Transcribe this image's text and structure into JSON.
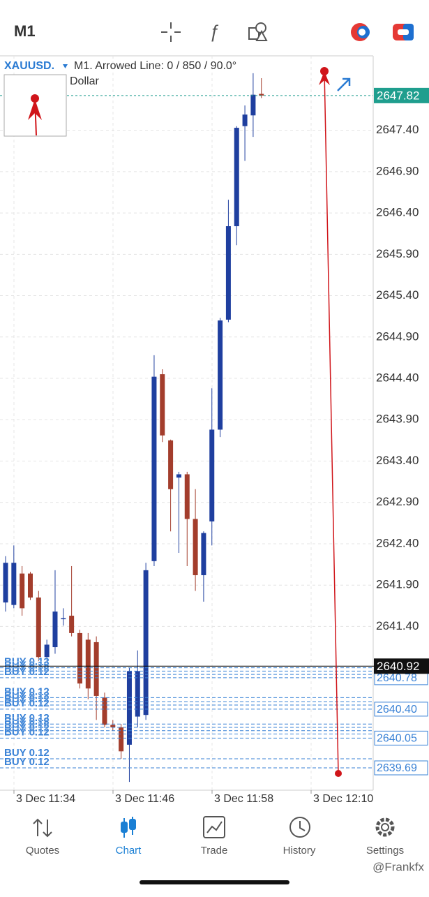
{
  "top_bar": {
    "timeframe": "M1"
  },
  "chart_header": {
    "symbol": "XAUUSD.",
    "object_info": "M1. Arrowed Line: 0 / 850 / 90.0°",
    "description": "Dollar"
  },
  "chart_data": {
    "type": "candlestick",
    "up_color": "#1f3f9f",
    "down_color": "#a33d2c",
    "grid": true,
    "open": [
      2641.69,
      2641.66,
      2642.04,
      2642.04,
      2641.75,
      2641.03,
      2641.15,
      2641.49,
      2641.53,
      2641.32,
      2641.24,
      2641.21,
      2640.54,
      2640.21,
      2640.18,
      2639.97,
      2640.31,
      2640.33,
      2642.19,
      2644.45,
      2643.65,
      2643.2,
      2643.24,
      2642.7,
      2642.02,
      2642.67,
      2643.78,
      2645.11,
      2646.24,
      2647.45,
      2647.58,
      2647.84
    ],
    "high": [
      2642.25,
      2642.38,
      2642.13,
      2642.06,
      2641.83,
      2641.24,
      2642.08,
      2641.62,
      2642.13,
      2641.36,
      2641.32,
      2641.28,
      2640.6,
      2640.27,
      2640.22,
      2640.9,
      2641.11,
      2642.17,
      2644.68,
      2644.51,
      2643.66,
      2643.27,
      2643.27,
      2643.06,
      2642.55,
      2644.28,
      2645.13,
      2646.56,
      2647.45,
      2647.7,
      2648.09,
      2648.03
    ],
    "low": [
      2641.58,
      2641.62,
      2641.53,
      2641.72,
      2640.98,
      2640.98,
      2641.07,
      2641.41,
      2641.28,
      2640.65,
      2640.52,
      2640.27,
      2640.18,
      2640.14,
      2639.8,
      2639.52,
      2640.18,
      2640.27,
      2642.13,
      2643.63,
      2642.55,
      2642.29,
      2642.13,
      2641.83,
      2641.7,
      2642.38,
      2643.69,
      2645.08,
      2646.01,
      2647.03,
      2647.32,
      2647.79
    ],
    "close": [
      2642.17,
      2642.17,
      2641.62,
      2641.75,
      2641.03,
      2641.18,
      2641.58,
      2641.5,
      2641.32,
      2640.71,
      2640.65,
      2640.56,
      2640.21,
      2640.18,
      2639.89,
      2640.86,
      2640.86,
      2642.08,
      2644.42,
      2643.71,
      2643.06,
      2643.24,
      2642.7,
      2642.02,
      2642.53,
      2643.78,
      2645.1,
      2646.24,
      2647.43,
      2647.59,
      2647.83,
      2647.82
    ],
    "ylim": [
      2639.42,
      2648.3
    ],
    "yticks": [
      {
        "value": 2647.4,
        "label": "2647.40"
      },
      {
        "value": 2646.9,
        "label": "2646.90"
      },
      {
        "value": 2646.4,
        "label": "2646.40"
      },
      {
        "value": 2645.9,
        "label": "2645.90"
      },
      {
        "value": 2645.4,
        "label": "2645.40"
      },
      {
        "value": 2644.9,
        "label": "2644.90"
      },
      {
        "value": 2644.4,
        "label": "2644.40"
      },
      {
        "value": 2643.9,
        "label": "2643.90"
      },
      {
        "value": 2643.4,
        "label": "2643.40"
      },
      {
        "value": 2642.9,
        "label": "2642.90"
      },
      {
        "value": 2642.4,
        "label": "2642.40"
      },
      {
        "value": 2641.9,
        "label": "2641.90"
      },
      {
        "value": 2641.4,
        "label": "2641.40"
      }
    ],
    "xticks": [
      "3 Dec 11:34",
      "3 Dec 11:46",
      "3 Dec 11:58",
      "3 Dec 12:10"
    ],
    "last_price": 2647.82,
    "last_price_color": "#1f9e8e",
    "ask_price": 2640.92,
    "orders": [
      {
        "label": "BUY 0.12",
        "price": 2640.9
      },
      {
        "label": "BUY 0.12",
        "price": 2640.86
      },
      {
        "label": "BUY 0.12",
        "price": 2640.82
      },
      {
        "label": "BUY 0.12",
        "price": 2640.78
      },
      {
        "label": "BUY 0.12",
        "price": 2640.54
      },
      {
        "label": "BUY 0.12",
        "price": 2640.49
      },
      {
        "label": "BUY 0.12",
        "price": 2640.45
      },
      {
        "label": "BUY 0.12",
        "price": 2640.4
      },
      {
        "label": "BUY 0.12",
        "price": 2640.22
      },
      {
        "label": "BUY 0.12",
        "price": 2640.18
      },
      {
        "label": "BUY 0.12",
        "price": 2640.14
      },
      {
        "label": "BUY 0.12",
        "price": 2640.1
      },
      {
        "label": "BUY 0.12",
        "price": 2640.05
      },
      {
        "label": "BUY 0.12",
        "price": 2639.8
      },
      {
        "label": "BUY 0.12",
        "price": 2639.69
      }
    ],
    "order_color": "#3a82d6",
    "order_price_labels": [
      2640.78,
      {
        "value": 2640.4,
        "label": "2640.40"
      },
      2640.05,
      2639.69
    ]
  },
  "nav": {
    "items": [
      "Quotes",
      "Chart",
      "Trade",
      "History",
      "Settings"
    ]
  },
  "watermark": "@Frankfx"
}
